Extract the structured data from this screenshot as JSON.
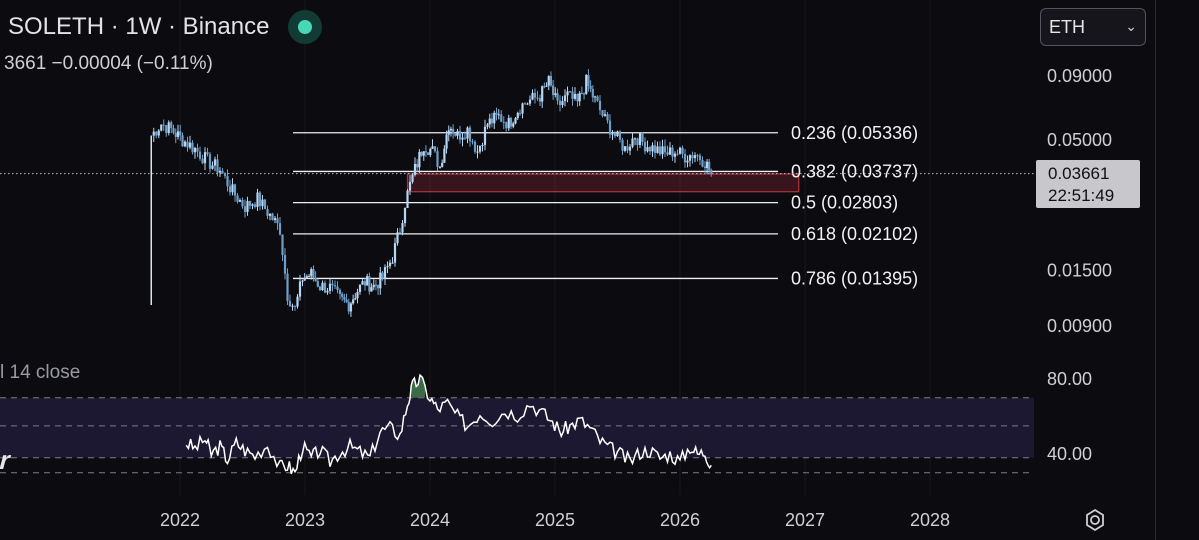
{
  "header": {
    "title": "SOLETH · 1W · Binance",
    "price_line": "3661  −0.00004 (−0.11%)"
  },
  "symbol_select": {
    "value": "ETH"
  },
  "indicator": {
    "label": "l 14 close"
  },
  "price_tag": {
    "price": "0.03661",
    "countdown": "22:51:49"
  },
  "chart_data": [
    {
      "type": "candlestick",
      "scale": "log",
      "x": [
        2021.77,
        2021.85,
        2021.93,
        2022.02,
        2022.12,
        2022.22,
        2022.32,
        2022.42,
        2022.52,
        2022.62,
        2022.72,
        2022.8,
        2022.86,
        2022.92,
        2022.98,
        2023.05,
        2023.12,
        2023.2,
        2023.28,
        2023.35,
        2023.42,
        2023.48,
        2023.55,
        2023.62,
        2023.7,
        2023.76,
        2023.8,
        2023.84,
        2023.88,
        2023.95,
        2024.02,
        2024.08,
        2024.15,
        2024.22,
        2024.3,
        2024.38,
        2024.46,
        2024.55,
        2024.63,
        2024.72,
        2024.8,
        2024.88,
        2024.95,
        2025.02,
        2025.1,
        2025.18,
        2025.25,
        2025.32,
        2025.4,
        2025.48,
        2025.56,
        2025.64,
        2025.72,
        2025.8,
        2025.88,
        2025.96,
        2026.04,
        2026.12,
        2026.2,
        2026.25
      ],
      "y": [
        0.052,
        0.058,
        0.055,
        0.05,
        0.046,
        0.041,
        0.038,
        0.031,
        0.027,
        0.029,
        0.025,
        0.022,
        0.012,
        0.0105,
        0.014,
        0.0145,
        0.013,
        0.0128,
        0.0115,
        0.011,
        0.0125,
        0.0135,
        0.013,
        0.014,
        0.017,
        0.022,
        0.028,
        0.033,
        0.038,
        0.048,
        0.045,
        0.039,
        0.058,
        0.052,
        0.055,
        0.045,
        0.058,
        0.062,
        0.058,
        0.068,
        0.072,
        0.075,
        0.085,
        0.068,
        0.075,
        0.07,
        0.085,
        0.072,
        0.06,
        0.052,
        0.046,
        0.052,
        0.048,
        0.046,
        0.044,
        0.045,
        0.043,
        0.044,
        0.041,
        0.03661
      ],
      "y_ticks": [
        0.09,
        0.05,
        0.015,
        0.009
      ],
      "y_tick_labels": [
        "0.09000",
        "0.05000",
        "0.01500",
        "0.00900"
      ],
      "x_ticks": [
        2022,
        2023,
        2024,
        2025,
        2026,
        2027,
        2028
      ],
      "x_tick_labels": [
        "2022",
        "2023",
        "2024",
        "2025",
        "2026",
        "2027",
        "2028"
      ],
      "fib_levels": [
        {
          "ratio": "0.236",
          "value": 0.05336,
          "label": "0.236 (0.05336)"
        },
        {
          "ratio": "0.382",
          "value": 0.03737,
          "label": "0.382 (0.03737)"
        },
        {
          "ratio": "0.5",
          "value": 0.02803,
          "label": "0.5 (0.02803)"
        },
        {
          "ratio": "0.618",
          "value": 0.02102,
          "label": "0.618 (0.02102)"
        },
        {
          "ratio": "0.786",
          "value": 0.01395,
          "label": "0.786 (0.01395)"
        }
      ],
      "zone": {
        "from": 2023.82,
        "to": 2026.95,
        "low": 0.031,
        "high": 0.0365,
        "color": "#b1323f"
      },
      "current_price": 0.03661,
      "colors": {
        "up": "#b8d6f2",
        "down": "#6f9fc8",
        "line": "#ffffff"
      }
    },
    {
      "type": "line",
      "x": [
        2022.05,
        2022.12,
        2022.2,
        2022.25,
        2022.32,
        2022.38,
        2022.45,
        2022.52,
        2022.6,
        2022.7,
        2022.8,
        2022.86,
        2022.92,
        2022.98,
        2023.05,
        2023.12,
        2023.2,
        2023.28,
        2023.36,
        2023.44,
        2023.52,
        2023.6,
        2023.68,
        2023.76,
        2023.82,
        2023.86,
        2023.92,
        2024.0,
        2024.06,
        2024.14,
        2024.22,
        2024.3,
        2024.4,
        2024.5,
        2024.6,
        2024.7,
        2024.8,
        2024.9,
        2024.98,
        2025.05,
        2025.12,
        2025.2,
        2025.28,
        2025.36,
        2025.44,
        2025.52,
        2025.6,
        2025.68,
        2025.76,
        2025.84,
        2025.92,
        2026.0,
        2026.08,
        2026.14,
        2026.2,
        2026.25
      ],
      "y": [
        46,
        43,
        48,
        40,
        44,
        37,
        46,
        42,
        39,
        45,
        33,
        34,
        30,
        44,
        38,
        42,
        36,
        41,
        44,
        41,
        38,
        52,
        54,
        50,
        67,
        76,
        80,
        70,
        64,
        67,
        60,
        55,
        62,
        58,
        63,
        61,
        67,
        62,
        57,
        52,
        55,
        58,
        54,
        47,
        43,
        40,
        36,
        41,
        42,
        38,
        40,
        36,
        44,
        40,
        41,
        34
      ],
      "overbought_range": [
        70,
        38
      ],
      "overbought_threshold": 70,
      "y_ticks": [
        80,
        40
      ],
      "y_tick_labels": [
        "80.00",
        "40.00"
      ],
      "colors": {
        "line": "#ffffff",
        "band": "#1d1831",
        "highlight": "#3c6b46"
      }
    }
  ]
}
